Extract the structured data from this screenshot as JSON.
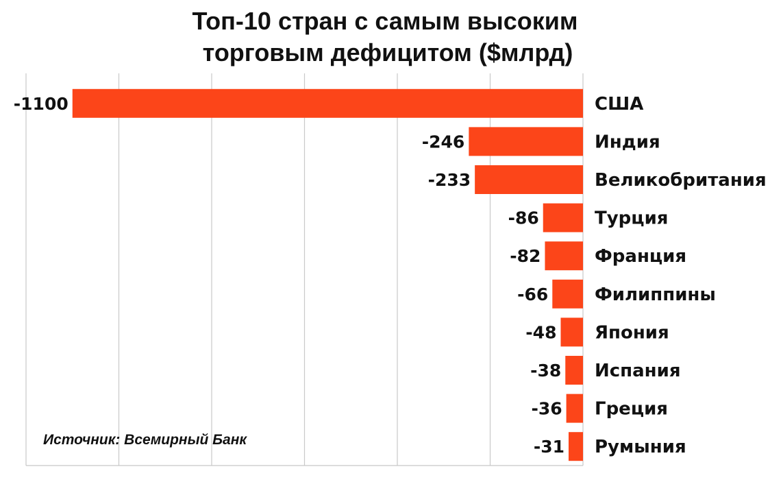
{
  "title_line1": "Топ-10 стран с самым высоким",
  "title_line2": "торговым дефицитом ($млрд)",
  "source": "Источник: Всемирный Банк",
  "chart_data": {
    "type": "bar",
    "orientation": "horizontal",
    "title": "Топ-10 стран с самым высоким торговым дефицитом ($млрд)",
    "categories": [
      "США",
      "Индия",
      "Великобритания",
      "Турция",
      "Франция",
      "Филиппины",
      "Япония",
      "Испания",
      "Греция",
      "Румыния"
    ],
    "values": [
      -1100,
      -246,
      -233,
      -86,
      -82,
      -66,
      -48,
      -38,
      -36,
      -31
    ],
    "value_labels": [
      "-1100",
      "-246",
      "-233",
      "-86",
      "-82",
      "-66",
      "-48",
      "-38",
      "-36",
      "-31"
    ],
    "xlim": [
      -1200,
      0
    ],
    "grid": true,
    "bar_color": "#fc4519",
    "xlabel": "",
    "ylabel": ""
  }
}
